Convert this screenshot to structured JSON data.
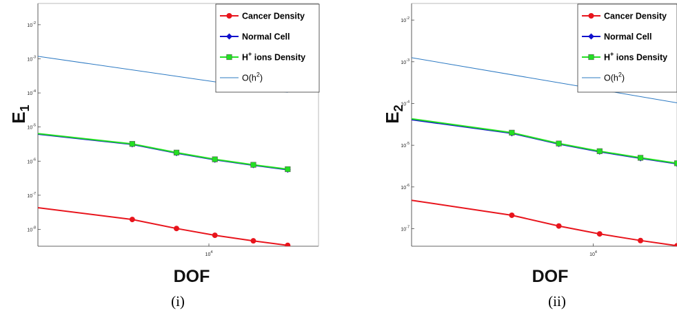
{
  "chart_data": [
    {
      "type": "line",
      "panel_caption": "(i)",
      "ylabel": "E",
      "ylabel_sub": "1",
      "xlabel": "DOF",
      "xscale": "log",
      "yscale": "log",
      "xlim": [
        1900,
        29000
      ],
      "ylim": [
        3.2e-09,
        0.042
      ],
      "x_ticks": [
        {
          "value": 10000,
          "base": "10",
          "exp": "4"
        }
      ],
      "y_ticks": [
        {
          "value": 1e-08,
          "base": "10",
          "exp": "-8"
        },
        {
          "value": 1e-07,
          "base": "10",
          "exp": "-7"
        },
        {
          "value": 1e-06,
          "base": "10",
          "exp": "-6"
        },
        {
          "value": 1e-05,
          "base": "10",
          "exp": "-5"
        },
        {
          "value": 0.0001,
          "base": "10",
          "exp": "-4"
        },
        {
          "value": 0.001,
          "base": "10",
          "exp": "-3"
        },
        {
          "value": 0.01,
          "base": "10",
          "exp": "-2"
        }
      ],
      "legend_position": "top-right",
      "series": [
        {
          "name": "Cancer Density",
          "color": "#e8141c",
          "marker": "circle",
          "x": [
            1900,
            4750,
            7300,
            10600,
            15400,
            21500
          ],
          "y": [
            4.3e-08,
            1.95e-08,
            1.06e-08,
            6.7e-09,
            4.6e-09,
            3.4e-09
          ]
        },
        {
          "name": "Normal Cell",
          "color": "#1010cc",
          "marker": "diamond",
          "x": [
            1900,
            4750,
            7300,
            10600,
            15400,
            21500
          ],
          "y": [
            6.2e-06,
            3.1e-06,
            1.72e-06,
            1.1e-06,
            7.6e-07,
            5.6e-07
          ]
        },
        {
          "name": "H⁺ions Density",
          "name_parts": [
            "H",
            "+",
            " ions Density"
          ],
          "color": "#22e022",
          "marker": "square",
          "x": [
            1900,
            4750,
            7300,
            10600,
            15400,
            21500
          ],
          "y": [
            6.4e-06,
            3.2e-06,
            1.78e-06,
            1.13e-06,
            7.8e-07,
            5.8e-07
          ]
        },
        {
          "name": "O(h²)",
          "name_parts": [
            "O(h",
            "2",
            ")"
          ],
          "color": "#2a78c2",
          "marker": "none",
          "x": [
            1900,
            21500
          ],
          "y": [
            0.00118,
            0.000104
          ]
        }
      ]
    },
    {
      "type": "line",
      "panel_caption": "(ii)",
      "ylabel": "E",
      "ylabel_sub": "2",
      "xlabel": "DOF",
      "xscale": "log",
      "yscale": "log",
      "xlim": [
        1900,
        21500
      ],
      "ylim": [
        3.8e-08,
        0.025
      ],
      "x_ticks": [
        {
          "value": 10000,
          "base": "10",
          "exp": "4"
        }
      ],
      "y_ticks": [
        {
          "value": 1e-07,
          "base": "10",
          "exp": "-7"
        },
        {
          "value": 1e-06,
          "base": "10",
          "exp": "-6"
        },
        {
          "value": 1e-05,
          "base": "10",
          "exp": "-5"
        },
        {
          "value": 0.0001,
          "base": "10",
          "exp": "-4"
        },
        {
          "value": 0.001,
          "base": "10",
          "exp": "-3"
        },
        {
          "value": 0.01,
          "base": "10",
          "exp": "-2"
        }
      ],
      "legend_position": "top-right",
      "series": [
        {
          "name": "Cancer Density",
          "color": "#e8141c",
          "marker": "circle",
          "x": [
            1900,
            4750,
            7300,
            10600,
            15400,
            21500
          ],
          "y": [
            4.8e-07,
            2.1e-07,
            1.16e-07,
            7.5e-08,
            5.2e-08,
            3.9e-08
          ]
        },
        {
          "name": "Normal Cell",
          "color": "#1010cc",
          "marker": "diamond",
          "x": [
            1900,
            4750,
            7300,
            10600,
            15400,
            21500
          ],
          "y": [
            4.1e-05,
            1.93e-05,
            1.07e-05,
            7e-06,
            4.85e-06,
            3.6e-06
          ]
        },
        {
          "name": "H⁺ions Density",
          "name_parts": [
            "H",
            "+",
            " ions Density"
          ],
          "color": "#22e022",
          "marker": "square",
          "x": [
            1900,
            4750,
            7300,
            10600,
            15400,
            21500
          ],
          "y": [
            4.3e-05,
            2e-05,
            1.1e-05,
            7.2e-06,
            5e-06,
            3.7e-06
          ]
        },
        {
          "name": "O(h²)",
          "name_parts": [
            "O(h",
            "2",
            ")"
          ],
          "color": "#2a78c2",
          "marker": "none",
          "x": [
            1900,
            21500
          ],
          "y": [
            0.00125,
            0.000104
          ]
        }
      ]
    }
  ]
}
